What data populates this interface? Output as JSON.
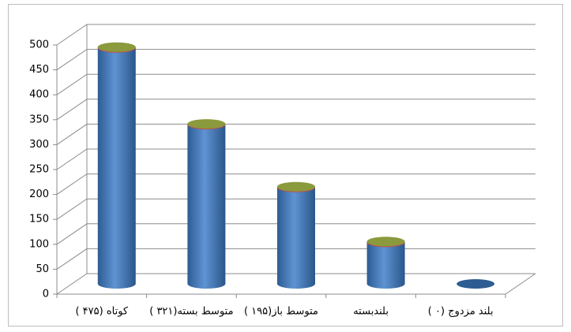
{
  "chart_data": {
    "type": "bar3d",
    "categories": [
      "کوتاه (۴۷۵ )",
      "متوسط بسته(۳۲۱ )",
      "متوسط باز(۱۹۵ )",
      "بلندبسته",
      "بلند مزدوج (۰ )"
    ],
    "values": [
      475,
      321,
      195,
      85,
      0
    ],
    "color": "#4f81bd",
    "ylim": [
      0,
      500
    ],
    "yticks": [
      0,
      50,
      100,
      150,
      200,
      250,
      300,
      350,
      400,
      450,
      500
    ],
    "grid": true
  }
}
